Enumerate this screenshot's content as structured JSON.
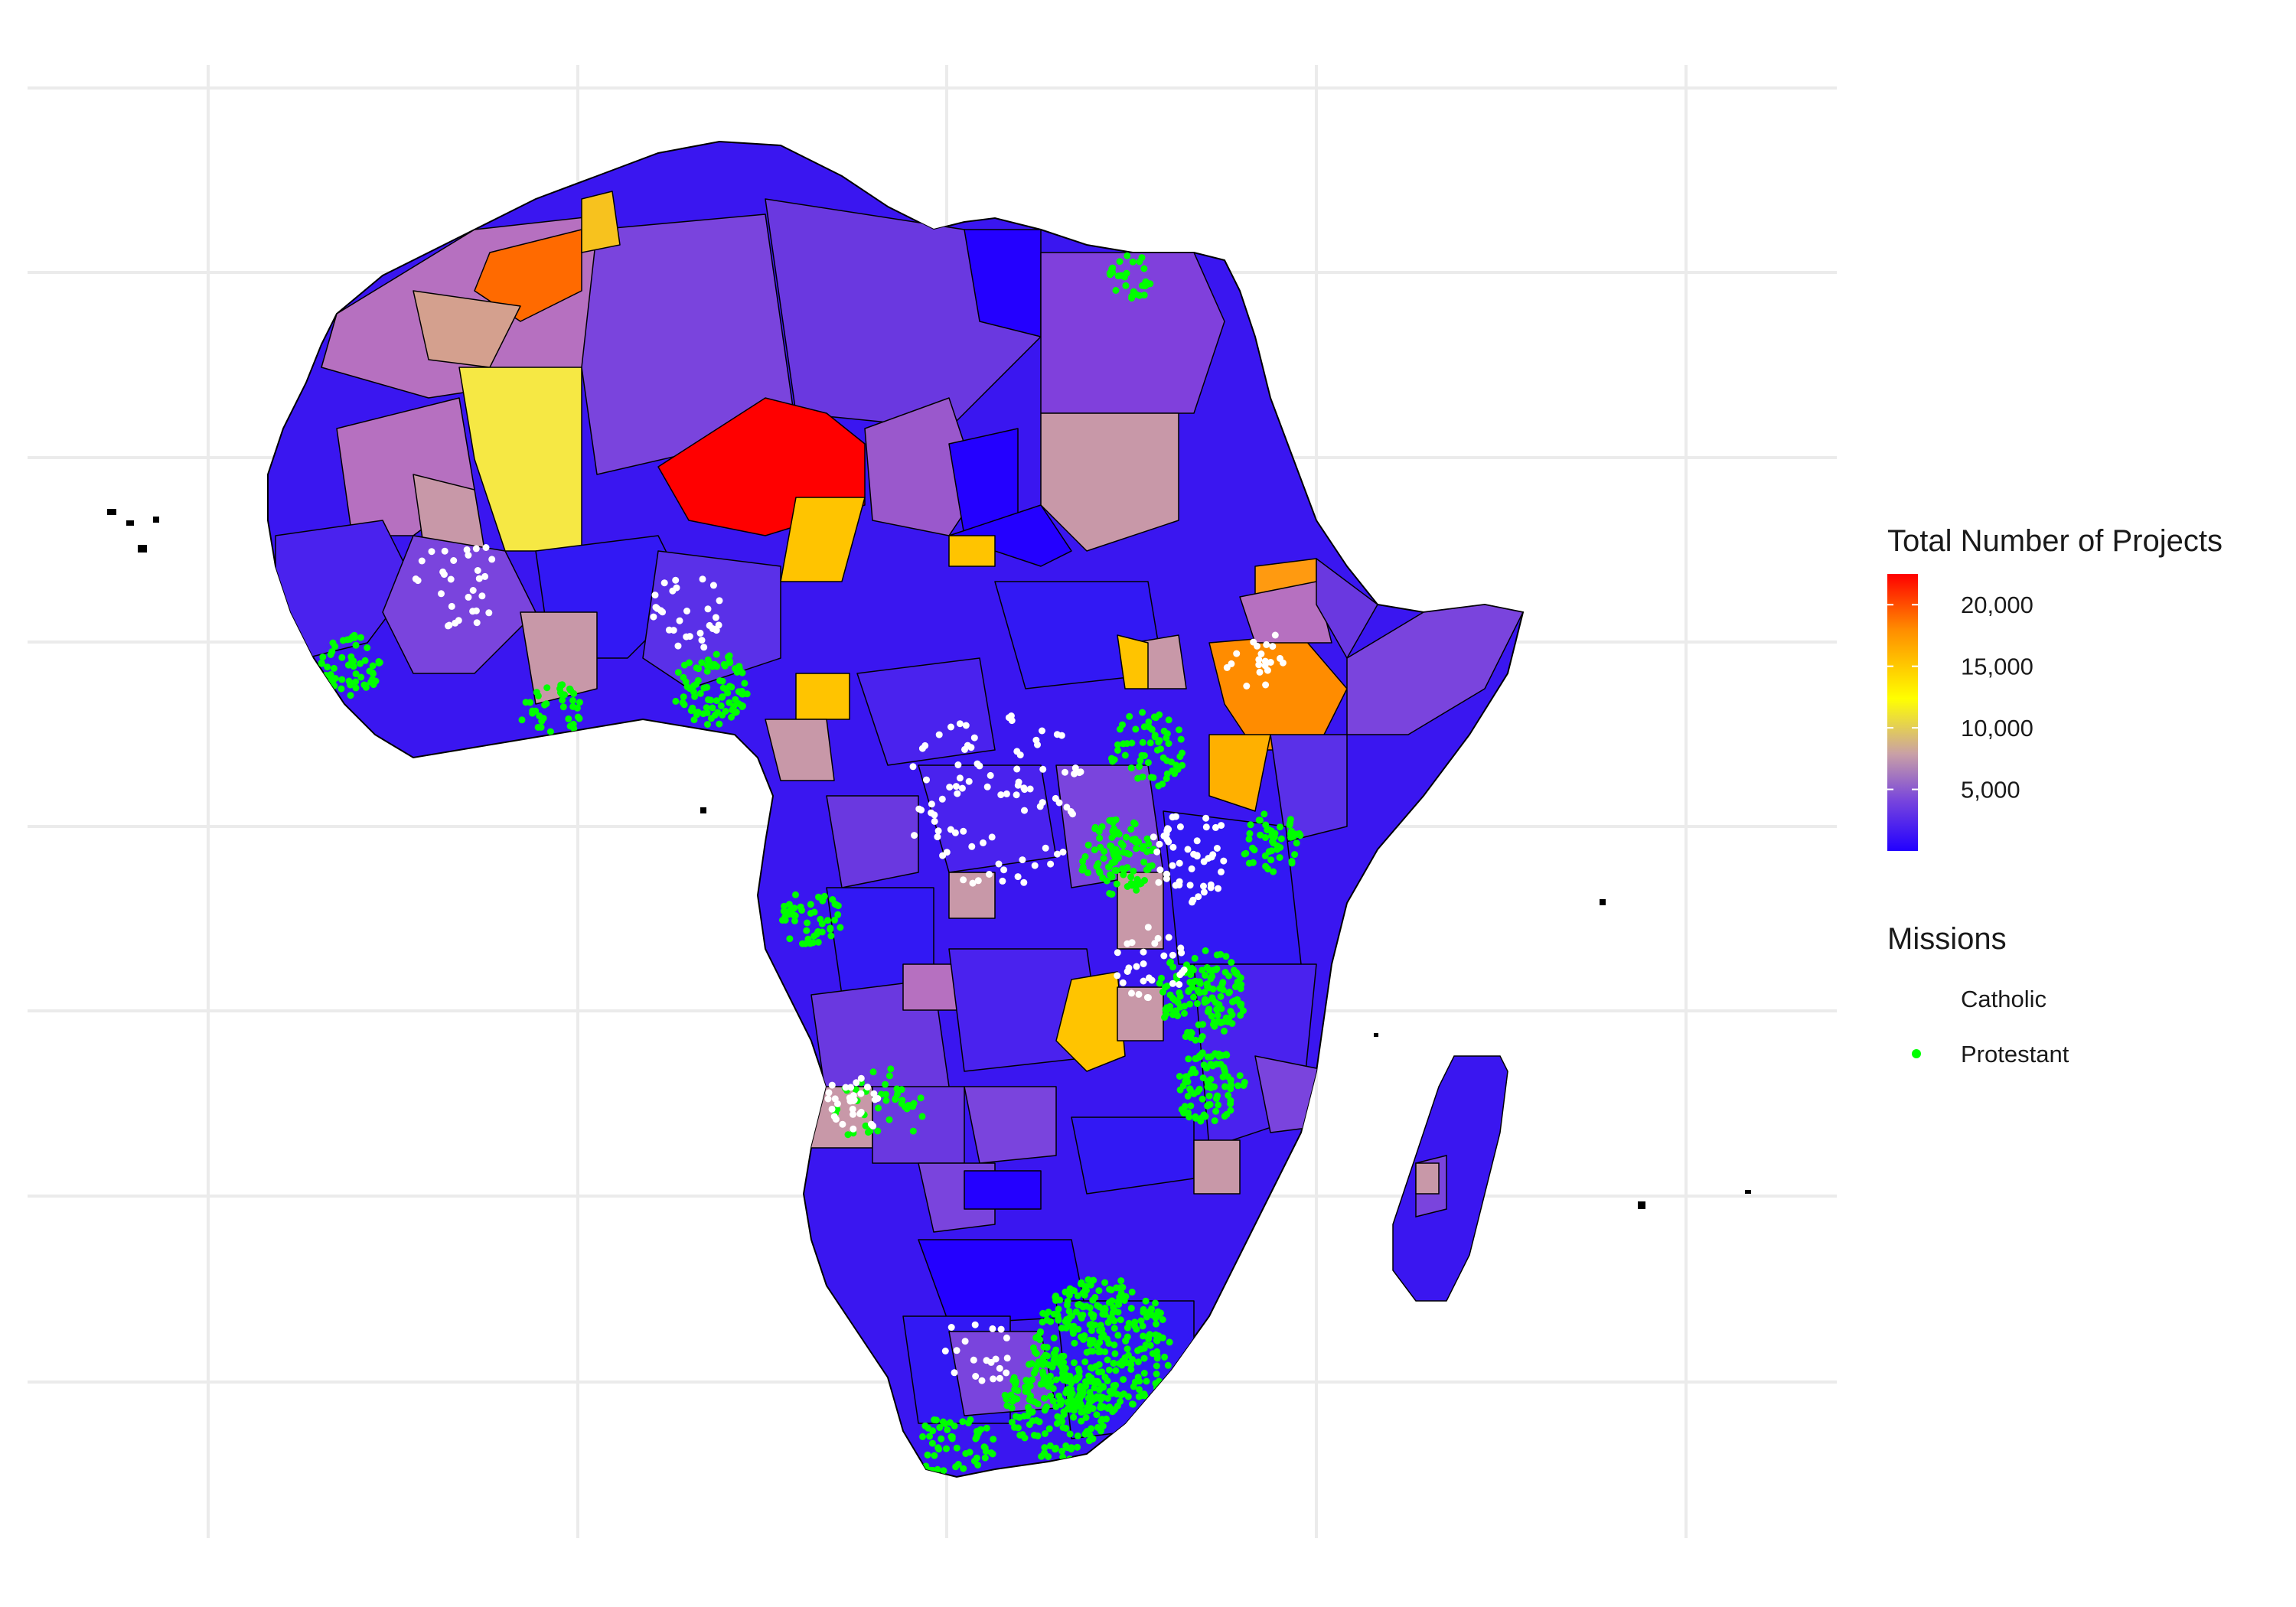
{
  "legend": {
    "fill_title": "Total Number of Projects",
    "fill_breaks": [
      "20,000",
      "15,000",
      "10,000",
      "5,000"
    ],
    "fill_break_values": [
      20000,
      15000,
      10000,
      5000
    ],
    "fill_range": [
      0,
      22500
    ],
    "gradient_colors": [
      "#ff0000",
      "#ff9900",
      "#ffff00",
      "#c9a0a6",
      "#7744dd",
      "#2200ff"
    ],
    "points_title": "Missions",
    "points_items": [
      {
        "label": "Catholic",
        "color": "#ffffff"
      },
      {
        "label": "Protestant",
        "color": "#00ff00"
      }
    ]
  },
  "map": {
    "background_color": "#ffffff",
    "gridline_color": "#ebebeb",
    "region_border_color": "#000000"
  }
}
